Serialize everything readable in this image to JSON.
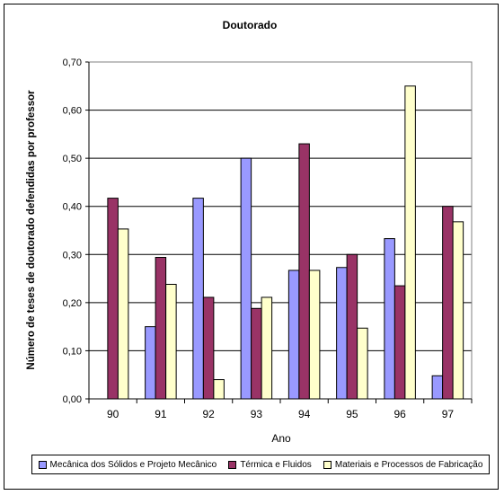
{
  "chart_data": {
    "type": "bar",
    "title": "Doutorado",
    "xlabel": "Ano",
    "ylabel": "Número de teses de doutorado defendidas por professor",
    "categories": [
      "90",
      "91",
      "92",
      "93",
      "94",
      "95",
      "96",
      "97"
    ],
    "ylim": [
      0,
      0.7
    ],
    "yticks": [
      "0,00",
      "0,10",
      "0,20",
      "0,30",
      "0,40",
      "0,50",
      "0,60",
      "0,70"
    ],
    "grid": true,
    "legend_position": "bottom",
    "series": [
      {
        "name": "Mecânica dos Sólidos e Projeto Mecânico",
        "color": "#9999ff",
        "values": [
          0,
          0.15,
          0.417,
          0.5,
          0.267,
          0.273,
          0.333,
          0.048
        ]
      },
      {
        "name": "Térmica e Fluidos",
        "color": "#993366",
        "values": [
          0.417,
          0.294,
          0.211,
          0.188,
          0.53,
          0.3,
          0.235,
          0.4
        ]
      },
      {
        "name": "Materiais e Processos de Fabricação",
        "color": "#ffffcc",
        "values": [
          0.353,
          0.238,
          0.04,
          0.211,
          0.267,
          0.147,
          0.65,
          0.368
        ]
      }
    ]
  }
}
